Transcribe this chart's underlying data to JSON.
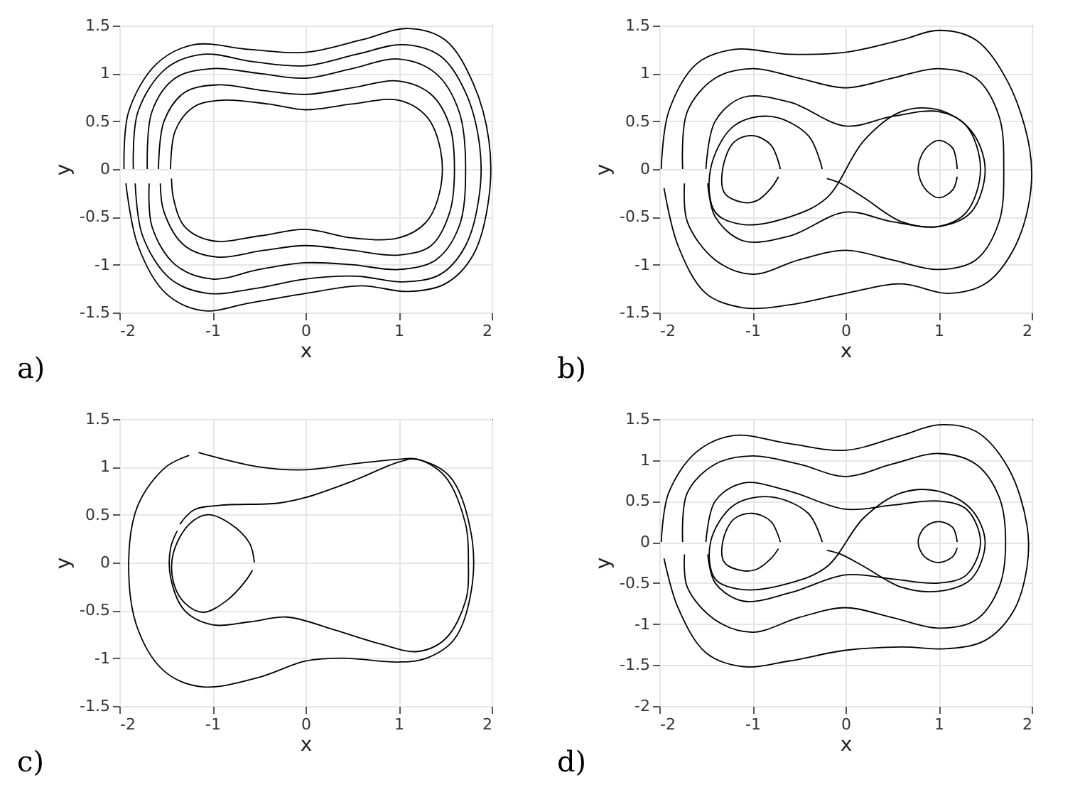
{
  "chart_data": [
    {
      "type": "line",
      "xlabel": "x",
      "ylabel": "y",
      "annotations": [
        "a)"
      ],
      "grid": true,
      "xlim": [
        -2,
        2
      ],
      "ylim": [
        -1.5,
        1.5
      ],
      "xticks": [
        -2,
        -1,
        0,
        1,
        2
      ],
      "yticks": [
        -1.5,
        -1,
        -0.5,
        0,
        0.5,
        1,
        1.5
      ],
      "series": [
        {
          "color": "#000000",
          "x": [
            -1.95,
            -1.9,
            -1.6,
            -1.2,
            -0.6,
            0,
            0.6,
            1.1,
            1.5,
            1.8,
            1.97,
            1.97,
            1.8,
            1.5,
            1.1,
            0.6,
            0,
            -0.6,
            -1.1,
            -1.5,
            -1.8,
            -1.93
          ],
          "values": [
            0,
            0.6,
            1.1,
            1.3,
            1.25,
            1.22,
            1.35,
            1.47,
            1.35,
            0.9,
            0.3,
            -0.3,
            -0.9,
            -1.2,
            -1.28,
            -1.22,
            -1.3,
            -1.4,
            -1.48,
            -1.3,
            -0.8,
            -0.15
          ]
        },
        {
          "color": "#000000",
          "x": [
            -1.85,
            -1.8,
            -1.5,
            -1.1,
            -0.55,
            0,
            0.55,
            1.05,
            1.45,
            1.72,
            1.87,
            1.87,
            1.72,
            1.45,
            1.05,
            0.55,
            0,
            -0.55,
            -1.05,
            -1.45,
            -1.75,
            -1.83
          ],
          "values": [
            0,
            0.6,
            1.05,
            1.2,
            1.12,
            1.08,
            1.2,
            1.3,
            1.18,
            0.8,
            0.25,
            -0.25,
            -0.8,
            -1.1,
            -1.18,
            -1.12,
            -1.15,
            -1.25,
            -1.3,
            -1.15,
            -0.7,
            -0.15
          ]
        },
        {
          "color": "#000000",
          "x": [
            -1.7,
            -1.65,
            -1.4,
            -1.0,
            -0.5,
            0,
            0.5,
            1.0,
            1.4,
            1.65,
            1.72,
            1.65,
            1.4,
            1.0,
            0.5,
            0,
            -0.5,
            -1.0,
            -1.4,
            -1.65,
            -1.68
          ],
          "values": [
            0,
            0.6,
            0.95,
            1.05,
            1.0,
            0.95,
            1.05,
            1.15,
            1.0,
            0.6,
            0,
            -0.6,
            -0.95,
            -1.05,
            -1.0,
            -0.98,
            -1.05,
            -1.15,
            -1.0,
            -0.6,
            -0.15
          ]
        },
        {
          "color": "#000000",
          "x": [
            -1.58,
            -1.52,
            -1.3,
            -0.95,
            -0.45,
            0,
            0.5,
            1.0,
            1.35,
            1.55,
            1.6,
            1.55,
            1.35,
            1.0,
            0.5,
            0,
            -0.45,
            -0.95,
            -1.3,
            -1.52,
            -1.56
          ],
          "values": [
            0,
            0.5,
            0.8,
            0.88,
            0.82,
            0.78,
            0.85,
            0.92,
            0.78,
            0.45,
            0,
            -0.45,
            -0.8,
            -0.9,
            -0.85,
            -0.8,
            -0.85,
            -0.92,
            -0.8,
            -0.45,
            -0.15
          ]
        },
        {
          "color": "#000000",
          "x": [
            -1.45,
            -1.4,
            -1.2,
            -0.9,
            -0.4,
            0,
            0.5,
            1.0,
            1.3,
            1.45,
            1.45,
            1.3,
            1.0,
            0.5,
            0,
            -0.5,
            -1.0,
            -1.3,
            -1.42,
            -1.44
          ],
          "values": [
            0,
            0.4,
            0.65,
            0.72,
            0.68,
            0.62,
            0.68,
            0.72,
            0.55,
            0.2,
            -0.2,
            -0.55,
            -0.72,
            -0.72,
            -0.63,
            -0.7,
            -0.75,
            -0.6,
            -0.3,
            -0.1
          ]
        }
      ]
    },
    {
      "type": "line",
      "xlabel": "x",
      "ylabel": "y",
      "annotations": [
        "b)"
      ],
      "grid": true,
      "xlim": [
        -2,
        2
      ],
      "ylim": [
        -1.5,
        1.5
      ],
      "xticks": [
        -2,
        -1,
        0,
        1,
        2
      ],
      "yticks": [
        -1.5,
        -1,
        -0.5,
        0,
        0.5,
        1,
        1.5
      ],
      "series": [
        {
          "color": "#000000",
          "x": [
            -1.98,
            -1.9,
            -1.6,
            -1.2,
            -0.6,
            0,
            0.6,
            1.0,
            1.4,
            1.75,
            1.98,
            1.98,
            1.8,
            1.5,
            1.1,
            0.6,
            0,
            -0.6,
            -1.1,
            -1.5,
            -1.8,
            -1.95
          ],
          "values": [
            0,
            0.6,
            1.1,
            1.25,
            1.2,
            1.22,
            1.35,
            1.45,
            1.35,
            0.9,
            0.2,
            -0.3,
            -0.85,
            -1.2,
            -1.3,
            -1.2,
            -1.3,
            -1.42,
            -1.45,
            -1.3,
            -0.8,
            -0.2
          ]
        },
        {
          "color": "#000000",
          "x": [
            -1.75,
            -1.7,
            -1.4,
            -1.0,
            -0.5,
            0,
            0.5,
            1.0,
            1.4,
            1.65,
            1.7,
            1.65,
            1.4,
            1.0,
            0.5,
            0,
            -0.5,
            -1.0,
            -1.4,
            -1.7,
            -1.73
          ],
          "values": [
            0,
            0.6,
            0.95,
            1.05,
            0.95,
            0.85,
            0.95,
            1.05,
            0.95,
            0.55,
            0,
            -0.55,
            -0.95,
            -1.05,
            -0.95,
            -0.85,
            -0.95,
            -1.1,
            -0.95,
            -0.55,
            -0.15
          ]
        },
        {
          "color": "#000000",
          "x": [
            -1.5,
            -1.4,
            -1.1,
            -0.6,
            0,
            0.5,
            1.0,
            1.3,
            1.45,
            1.3,
            1.0,
            0.5,
            0,
            -0.6,
            -1.1,
            -1.4,
            -1.48
          ],
          "values": [
            0,
            0.5,
            0.75,
            0.7,
            0.45,
            0.55,
            0.6,
            0.45,
            0,
            -0.45,
            -0.6,
            -0.55,
            -0.45,
            -0.7,
            -0.75,
            -0.5,
            -0.15
          ]
        },
        {
          "color": "#000000",
          "x": [
            -0.7,
            -0.8,
            -1.0,
            -1.2,
            -1.32,
            -1.3,
            -1.1,
            -0.95,
            -0.8,
            -0.72
          ],
          "values": [
            0,
            0.25,
            0.35,
            0.28,
            0,
            -0.25,
            -0.35,
            -0.33,
            -0.2,
            -0.08
          ]
        },
        {
          "color": "#000000",
          "x": [
            1.2,
            1.15,
            1.0,
            0.85,
            0.78,
            0.85,
            1.0,
            1.15,
            1.2
          ],
          "values": [
            0,
            0.22,
            0.3,
            0.2,
            0,
            -0.2,
            -0.3,
            -0.22,
            -0.08
          ]
        },
        {
          "color": "#000000",
          "x": [
            -0.25,
            -0.4,
            -0.8,
            -1.2,
            -1.45,
            -1.4,
            -1.1,
            -0.6,
            -0.2,
            0.2,
            0.6,
            1.0,
            1.35,
            1.5,
            1.35,
            1.0,
            0.6,
            0.2,
            -0.05,
            -0.2
          ],
          "values": [
            0,
            0.35,
            0.55,
            0.45,
            0,
            -0.45,
            -0.58,
            -0.5,
            -0.3,
            0.3,
            0.6,
            0.62,
            0.4,
            0,
            -0.45,
            -0.6,
            -0.55,
            -0.3,
            -0.15,
            -0.1
          ]
        }
      ]
    },
    {
      "type": "line",
      "xlabel": "x",
      "ylabel": "y",
      "annotations": [
        "c)"
      ],
      "grid": true,
      "xlim": [
        -2,
        2
      ],
      "ylim": [
        -1.5,
        1.5
      ],
      "xticks": [
        -2,
        -1,
        0,
        1,
        2
      ],
      "yticks": [
        -1.5,
        -1,
        -0.5,
        0,
        0.5,
        1,
        1.5
      ],
      "series": [
        {
          "color": "#000000",
          "x": [
            -0.55,
            -0.6,
            -0.8,
            -1.05,
            -1.25,
            -1.42,
            -1.42,
            -1.3,
            -1.1,
            -0.85,
            -0.65,
            -0.57
          ],
          "values": [
            0,
            0.2,
            0.4,
            0.5,
            0.4,
            0.1,
            -0.2,
            -0.42,
            -0.52,
            -0.4,
            -0.2,
            -0.08
          ]
        },
        {
          "color": "#000000",
          "x": [
            -1.35,
            -1.2,
            -0.9,
            -0.3,
            0,
            0.5,
            1.0,
            1.2,
            1.5,
            1.72,
            1.75,
            1.72,
            1.5,
            1.2,
            0.8,
            0.3,
            -0.2,
            -0.6,
            -1.0,
            -1.3,
            -1.45,
            -1.45,
            -1.38
          ],
          "values": [
            0.4,
            0.55,
            0.6,
            0.62,
            0.68,
            0.85,
            1.05,
            1.08,
            0.9,
            0.4,
            0,
            -0.4,
            -0.8,
            -0.93,
            -0.85,
            -0.7,
            -0.57,
            -0.62,
            -0.65,
            -0.5,
            -0.15,
            0.15,
            0.33
          ]
        },
        {
          "color": "#000000",
          "x": [
            -1.15,
            -0.5,
            0,
            0.5,
            1.0,
            1.2,
            1.55,
            1.78,
            1.78,
            1.6,
            1.3,
            1.0,
            0.4,
            0,
            -0.5,
            -1.1,
            -1.5,
            -1.8,
            -1.9,
            -1.8,
            -1.5,
            -1.25
          ],
          "values": [
            1.15,
            1.0,
            0.97,
            1.03,
            1.08,
            1.08,
            0.9,
            0.3,
            -0.3,
            -0.8,
            -1.0,
            -1.04,
            -1.0,
            -1.03,
            -1.2,
            -1.3,
            -1.15,
            -0.7,
            0,
            0.6,
            1.0,
            1.12
          ]
        }
      ]
    },
    {
      "type": "line",
      "xlabel": "x",
      "ylabel": "y",
      "annotations": [
        "d)"
      ],
      "grid": true,
      "xlim": [
        -2,
        2
      ],
      "ylim": [
        -2,
        1.5
      ],
      "xticks": [
        -2,
        -1,
        0,
        1,
        2
      ],
      "yticks": [
        -2,
        -1.5,
        -1,
        -0.5,
        0,
        0.5,
        1,
        1.5
      ],
      "series": [
        {
          "color": "#000000",
          "x": [
            -1.98,
            -1.9,
            -1.6,
            -1.2,
            -0.6,
            0,
            0.6,
            1.0,
            1.4,
            1.75,
            1.95,
            1.95,
            1.8,
            1.5,
            1.1,
            0.6,
            0,
            -0.6,
            -1.1,
            -1.5,
            -1.8,
            -1.95
          ],
          "values": [
            0,
            0.6,
            1.1,
            1.3,
            1.2,
            1.12,
            1.3,
            1.43,
            1.35,
            0.9,
            0.2,
            -0.3,
            -0.85,
            -1.2,
            -1.3,
            -1.28,
            -1.32,
            -1.45,
            -1.52,
            -1.35,
            -0.8,
            -0.2
          ]
        },
        {
          "color": "#000000",
          "x": [
            -1.75,
            -1.7,
            -1.4,
            -1.0,
            -0.5,
            0,
            0.5,
            1.0,
            1.4,
            1.65,
            1.72,
            1.65,
            1.4,
            1.0,
            0.5,
            0,
            -0.5,
            -1.0,
            -1.4,
            -1.7,
            -1.73
          ],
          "values": [
            0,
            0.6,
            0.95,
            1.05,
            0.95,
            0.8,
            0.95,
            1.08,
            0.95,
            0.55,
            0,
            -0.55,
            -0.95,
            -1.05,
            -0.92,
            -0.8,
            -0.92,
            -1.1,
            -0.95,
            -0.55,
            -0.15
          ]
        },
        {
          "color": "#000000",
          "x": [
            -1.5,
            -1.4,
            -1.1,
            -0.6,
            0,
            0.5,
            1.0,
            1.3,
            1.45,
            1.3,
            1.0,
            0.5,
            0,
            -0.6,
            -1.1,
            -1.4,
            -1.48
          ],
          "values": [
            0,
            0.5,
            0.72,
            0.62,
            0.4,
            0.45,
            0.5,
            0.4,
            0,
            -0.4,
            -0.5,
            -0.45,
            -0.4,
            -0.62,
            -0.72,
            -0.5,
            -0.15
          ]
        },
        {
          "color": "#000000",
          "x": [
            -0.7,
            -0.8,
            -1.0,
            -1.2,
            -1.32,
            -1.3,
            -1.1,
            -0.95,
            -0.8,
            -0.72
          ],
          "values": [
            0,
            0.25,
            0.35,
            0.28,
            0,
            -0.25,
            -0.35,
            -0.33,
            -0.2,
            -0.08
          ]
        },
        {
          "color": "#000000",
          "x": [
            1.2,
            1.15,
            1.0,
            0.85,
            0.78,
            0.85,
            1.0,
            1.15,
            1.2
          ],
          "values": [
            0,
            0.18,
            0.25,
            0.18,
            0,
            -0.18,
            -0.25,
            -0.18,
            -0.07
          ]
        },
        {
          "color": "#000000",
          "x": [
            -0.25,
            -0.4,
            -0.8,
            -1.2,
            -1.45,
            -1.4,
            -1.1,
            -0.6,
            -0.2,
            0.2,
            0.6,
            1.0,
            1.35,
            1.5,
            1.35,
            1.0,
            0.6,
            0.2,
            -0.05,
            -0.2
          ],
          "values": [
            0,
            0.35,
            0.55,
            0.45,
            0,
            -0.45,
            -0.58,
            -0.5,
            -0.3,
            0.3,
            0.6,
            0.62,
            0.4,
            0,
            -0.45,
            -0.6,
            -0.55,
            -0.3,
            -0.15,
            -0.1
          ]
        }
      ]
    }
  ]
}
